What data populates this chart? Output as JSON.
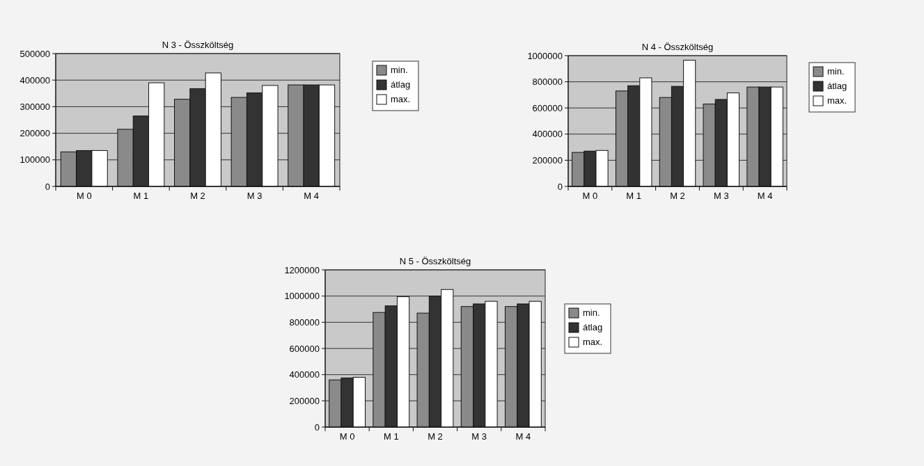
{
  "chart_data": [
    {
      "type": "bar",
      "title": "N 3 -  Összköltség",
      "categories": [
        "M 0",
        "M 1",
        "M 2",
        "M 3",
        "M 4"
      ],
      "series": [
        {
          "name": "min.",
          "color": "#8a8a8a",
          "values": [
            130000,
            215000,
            328000,
            335000,
            382000
          ]
        },
        {
          "name": "átlag",
          "color": "#333333",
          "values": [
            135000,
            265000,
            368000,
            352000,
            382000
          ]
        },
        {
          "name": "max.",
          "color": "#ffffff",
          "values": [
            135000,
            390000,
            427000,
            380000,
            382000
          ]
        }
      ],
      "ylim": [
        0,
        500000
      ],
      "yticks": [
        0,
        100000,
        200000,
        300000,
        400000,
        500000
      ],
      "grid": "y",
      "legend": "right"
    },
    {
      "type": "bar",
      "title": "N 4 -  Összköltség",
      "categories": [
        "M 0",
        "M 1",
        "M 2",
        "M 3",
        "M 4"
      ],
      "series": [
        {
          "name": "min.",
          "color": "#8a8a8a",
          "values": [
            260000,
            730000,
            680000,
            630000,
            760000
          ]
        },
        {
          "name": "átlag",
          "color": "#333333",
          "values": [
            270000,
            770000,
            765000,
            665000,
            760000
          ]
        },
        {
          "name": "max.",
          "color": "#ffffff",
          "values": [
            275000,
            830000,
            965000,
            715000,
            760000
          ]
        }
      ],
      "ylim": [
        0,
        1000000
      ],
      "yticks": [
        0,
        200000,
        400000,
        600000,
        800000,
        1000000
      ],
      "grid": "y",
      "legend": "right"
    },
    {
      "type": "bar",
      "title": "N 5 -  Összköltség",
      "categories": [
        "M 0",
        "M 1",
        "M 2",
        "M 3",
        "M 4"
      ],
      "series": [
        {
          "name": "min.",
          "color": "#8a8a8a",
          "values": [
            360000,
            875000,
            870000,
            920000,
            920000
          ]
        },
        {
          "name": "átlag",
          "color": "#333333",
          "values": [
            375000,
            925000,
            1000000,
            940000,
            940000
          ]
        },
        {
          "name": "max.",
          "color": "#ffffff",
          "values": [
            380000,
            995000,
            1050000,
            960000,
            960000
          ]
        }
      ],
      "ylim": [
        0,
        1200000
      ],
      "yticks": [
        0,
        200000,
        400000,
        600000,
        800000,
        1000000,
        1200000
      ],
      "grid": "y",
      "legend": "right"
    }
  ]
}
